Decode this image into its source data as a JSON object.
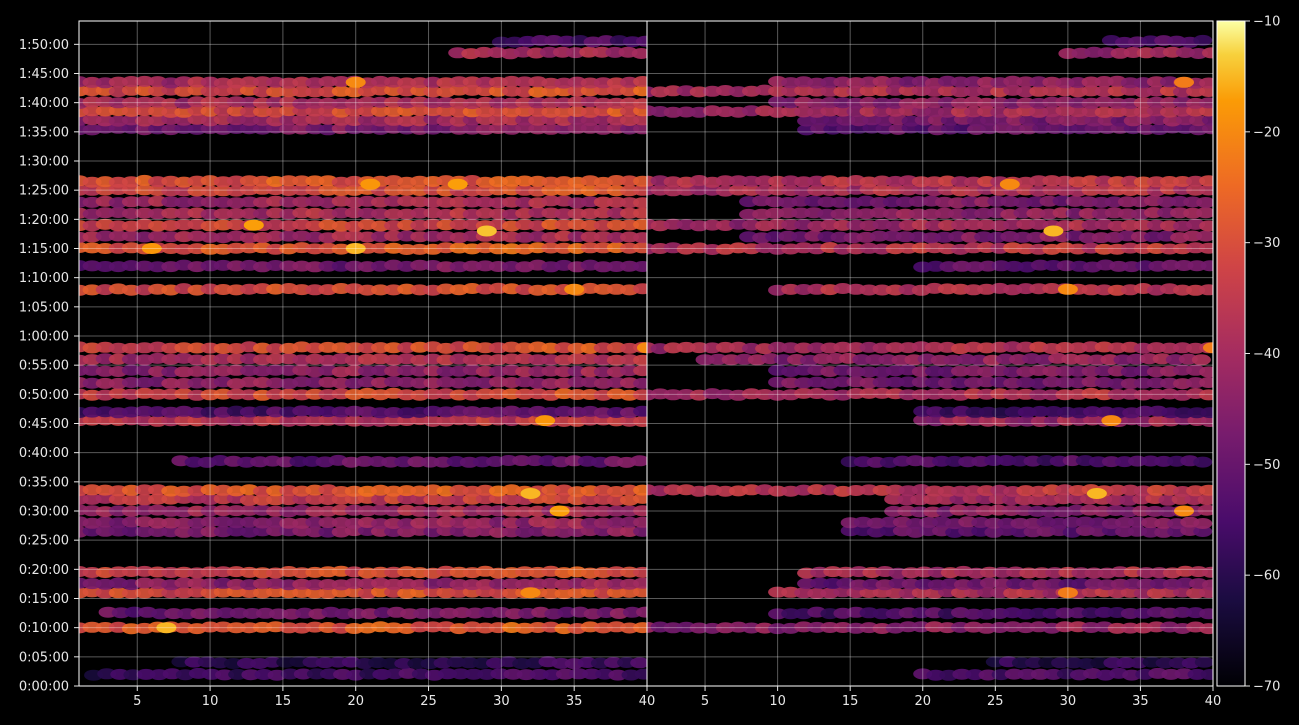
{
  "chart_data": {
    "type": "heatmap",
    "title": "",
    "colormap": "inferno",
    "background": "#000000",
    "grid": true,
    "panels": [
      {
        "name": "left",
        "x_range": [
          1,
          40
        ],
        "x_ticks": [
          5,
          10,
          15,
          20,
          25,
          30,
          35,
          40
        ],
        "bands": [
          {
            "y": "0:02:00",
            "x": [
              2,
              40
            ],
            "value": -58
          },
          {
            "y": "0:04:00",
            "x": [
              8,
              40
            ],
            "value": -60
          },
          {
            "y": "0:10:00",
            "x": [
              1,
              40
            ],
            "value": -30
          },
          {
            "y": "0:12:30",
            "x": [
              3,
              40
            ],
            "value": -50
          },
          {
            "y": "0:16:00",
            "x": [
              1,
              40
            ],
            "value": -32
          },
          {
            "y": "0:17:30",
            "x": [
              1,
              40
            ],
            "value": -45
          },
          {
            "y": "0:19:30",
            "x": [
              1,
              40
            ],
            "value": -33
          },
          {
            "y": "0:26:30",
            "x": [
              1,
              40
            ],
            "value": -48
          },
          {
            "y": "0:28:00",
            "x": [
              1,
              40
            ],
            "value": -45
          },
          {
            "y": "0:30:00",
            "x": [
              1,
              40
            ],
            "value": -42
          },
          {
            "y": "0:32:00",
            "x": [
              1,
              40
            ],
            "value": -36
          },
          {
            "y": "0:33:30",
            "x": [
              1,
              40
            ],
            "value": -30
          },
          {
            "y": "0:38:30",
            "x": [
              8,
              40
            ],
            "value": -52
          },
          {
            "y": "0:45:30",
            "x": [
              1,
              40
            ],
            "value": -38
          },
          {
            "y": "0:47:00",
            "x": [
              1,
              40
            ],
            "value": -55
          },
          {
            "y": "0:50:00",
            "x": [
              1,
              40
            ],
            "value": -33
          },
          {
            "y": "0:52:00",
            "x": [
              1,
              40
            ],
            "value": -45
          },
          {
            "y": "0:54:00",
            "x": [
              1,
              40
            ],
            "value": -45
          },
          {
            "y": "0:56:00",
            "x": [
              1,
              40
            ],
            "value": -40
          },
          {
            "y": "0:58:00",
            "x": [
              1,
              40
            ],
            "value": -33
          },
          {
            "y": "1:08:00",
            "x": [
              1,
              40
            ],
            "value": -32
          },
          {
            "y": "1:12:00",
            "x": [
              1,
              40
            ],
            "value": -50
          },
          {
            "y": "1:15:00",
            "x": [
              1,
              40
            ],
            "value": -30
          },
          {
            "y": "1:17:00",
            "x": [
              1,
              40
            ],
            "value": -42
          },
          {
            "y": "1:19:00",
            "x": [
              1,
              40
            ],
            "value": -34
          },
          {
            "y": "1:21:00",
            "x": [
              1,
              40
            ],
            "value": -40
          },
          {
            "y": "1:23:00",
            "x": [
              1,
              40
            ],
            "value": -42
          },
          {
            "y": "1:25:00",
            "x": [
              1,
              40
            ],
            "value": -33
          },
          {
            "y": "1:26:30",
            "x": [
              1,
              40
            ],
            "value": -30
          },
          {
            "y": "1:35:30",
            "x": [
              1,
              40
            ],
            "value": -48
          },
          {
            "y": "1:37:00",
            "x": [
              1,
              40
            ],
            "value": -42
          },
          {
            "y": "1:38:30",
            "x": [
              1,
              40
            ],
            "value": -33
          },
          {
            "y": "1:40:00",
            "x": [
              1,
              40
            ],
            "value": -40
          },
          {
            "y": "1:42:00",
            "x": [
              1,
              40
            ],
            "value": -32
          },
          {
            "y": "1:43:30",
            "x": [
              1,
              40
            ],
            "value": -40
          },
          {
            "y": "1:48:30",
            "x": [
              27,
              40
            ],
            "value": -40
          },
          {
            "y": "1:50:30",
            "x": [
              30,
              40
            ],
            "value": -55
          }
        ],
        "hotspots": [
          {
            "y": "0:10:00",
            "x": 7,
            "value": -15
          },
          {
            "y": "1:15:00",
            "x": 20,
            "value": -15
          },
          {
            "y": "1:15:00",
            "x": 6,
            "value": -18
          },
          {
            "y": "1:19:00",
            "x": 13,
            "value": -17
          },
          {
            "y": "1:18:00",
            "x": 29,
            "value": -14
          },
          {
            "y": "1:26:00",
            "x": 21,
            "value": -18
          },
          {
            "y": "1:26:00",
            "x": 27,
            "value": -17
          },
          {
            "y": "0:33:00",
            "x": 32,
            "value": -15
          },
          {
            "y": "0:30:00",
            "x": 34,
            "value": -17
          },
          {
            "y": "0:45:30",
            "x": 33,
            "value": -18
          },
          {
            "y": "0:16:00",
            "x": 32,
            "value": -20
          },
          {
            "y": "1:43:30",
            "x": 20,
            "value": -20
          },
          {
            "y": "1:08:00",
            "x": 35,
            "value": -20
          },
          {
            "y": "0:58:00",
            "x": 40,
            "value": -20
          }
        ]
      },
      {
        "name": "right",
        "x_range": [
          1,
          40
        ],
        "x_ticks": [
          5,
          10,
          15,
          20,
          25,
          30,
          35,
          40
        ],
        "bands": [
          {
            "y": "0:02:00",
            "x": [
              20,
              40
            ],
            "value": -55
          },
          {
            "y": "0:04:00",
            "x": [
              25,
              40
            ],
            "value": -60
          },
          {
            "y": "0:10:00",
            "x": [
              1,
              40
            ],
            "value": -45
          },
          {
            "y": "0:12:30",
            "x": [
              10,
              40
            ],
            "value": -55
          },
          {
            "y": "0:16:00",
            "x": [
              10,
              40
            ],
            "value": -40
          },
          {
            "y": "0:17:30",
            "x": [
              12,
              40
            ],
            "value": -50
          },
          {
            "y": "0:19:30",
            "x": [
              12,
              40
            ],
            "value": -40
          },
          {
            "y": "0:26:30",
            "x": [
              15,
              40
            ],
            "value": -52
          },
          {
            "y": "0:28:00",
            "x": [
              15,
              40
            ],
            "value": -48
          },
          {
            "y": "0:30:00",
            "x": [
              18,
              40
            ],
            "value": -45
          },
          {
            "y": "0:32:00",
            "x": [
              18,
              40
            ],
            "value": -40
          },
          {
            "y": "0:33:30",
            "x": [
              1,
              40
            ],
            "value": -38
          },
          {
            "y": "0:38:30",
            "x": [
              15,
              40
            ],
            "value": -55
          },
          {
            "y": "0:45:30",
            "x": [
              20,
              40
            ],
            "value": -42
          },
          {
            "y": "0:47:00",
            "x": [
              20,
              40
            ],
            "value": -58
          },
          {
            "y": "0:50:00",
            "x": [
              1,
              40
            ],
            "value": -40
          },
          {
            "y": "0:52:00",
            "x": [
              10,
              40
            ],
            "value": -48
          },
          {
            "y": "0:54:00",
            "x": [
              10,
              40
            ],
            "value": -48
          },
          {
            "y": "0:56:00",
            "x": [
              5,
              40
            ],
            "value": -45
          },
          {
            "y": "0:58:00",
            "x": [
              1,
              40
            ],
            "value": -40
          },
          {
            "y": "1:08:00",
            "x": [
              10,
              40
            ],
            "value": -38
          },
          {
            "y": "1:12:00",
            "x": [
              20,
              40
            ],
            "value": -52
          },
          {
            "y": "1:15:00",
            "x": [
              1,
              40
            ],
            "value": -38
          },
          {
            "y": "1:17:00",
            "x": [
              8,
              40
            ],
            "value": -48
          },
          {
            "y": "1:19:00",
            "x": [
              1,
              40
            ],
            "value": -42
          },
          {
            "y": "1:21:00",
            "x": [
              8,
              40
            ],
            "value": -45
          },
          {
            "y": "1:23:00",
            "x": [
              8,
              40
            ],
            "value": -48
          },
          {
            "y": "1:25:00",
            "x": [
              1,
              40
            ],
            "value": -40
          },
          {
            "y": "1:26:30",
            "x": [
              1,
              40
            ],
            "value": -38
          },
          {
            "y": "1:35:30",
            "x": [
              12,
              40
            ],
            "value": -52
          },
          {
            "y": "1:37:00",
            "x": [
              12,
              40
            ],
            "value": -48
          },
          {
            "y": "1:38:30",
            "x": [
              1,
              40
            ],
            "value": -42
          },
          {
            "y": "1:40:00",
            "x": [
              10,
              40
            ],
            "value": -45
          },
          {
            "y": "1:42:00",
            "x": [
              1,
              40
            ],
            "value": -40
          },
          {
            "y": "1:43:30",
            "x": [
              10,
              40
            ],
            "value": -45
          },
          {
            "y": "1:48:30",
            "x": [
              30,
              40
            ],
            "value": -42
          },
          {
            "y": "1:50:30",
            "x": [
              33,
              40
            ],
            "value": -55
          }
        ],
        "hotspots": [
          {
            "y": "1:18:00",
            "x": 29,
            "value": -15
          },
          {
            "y": "0:33:00",
            "x": 32,
            "value": -15
          },
          {
            "y": "0:30:00",
            "x": 38,
            "value": -20
          },
          {
            "y": "0:45:30",
            "x": 33,
            "value": -20
          },
          {
            "y": "0:16:00",
            "x": 30,
            "value": -22
          },
          {
            "y": "1:26:00",
            "x": 26,
            "value": -20
          },
          {
            "y": "1:08:00",
            "x": 30,
            "value": -20
          },
          {
            "y": "0:58:00",
            "x": 40,
            "value": -22
          },
          {
            "y": "1:43:30",
            "x": 38,
            "value": -22
          }
        ]
      }
    ],
    "y_ticks": [
      "0:00:00",
      "0:05:00",
      "0:10:00",
      "0:15:00",
      "0:20:00",
      "0:25:00",
      "0:30:00",
      "0:35:00",
      "0:40:00",
      "0:45:00",
      "0:50:00",
      "0:55:00",
      "1:00:00",
      "1:05:00",
      "1:10:00",
      "1:15:00",
      "1:20:00",
      "1:25:00",
      "1:30:00",
      "1:35:00",
      "1:40:00",
      "1:45:00",
      "1:50:00"
    ],
    "y_range": [
      "0:00:00",
      "1:54:00"
    ],
    "colorbar": {
      "range": [
        -70,
        -10
      ],
      "ticks": [
        -10,
        -20,
        -30,
        -40,
        -50,
        -60,
        -70
      ],
      "tick_labels": [
        "−10",
        "−20",
        "−30",
        "−40",
        "−50",
        "−60",
        "−70"
      ]
    }
  }
}
